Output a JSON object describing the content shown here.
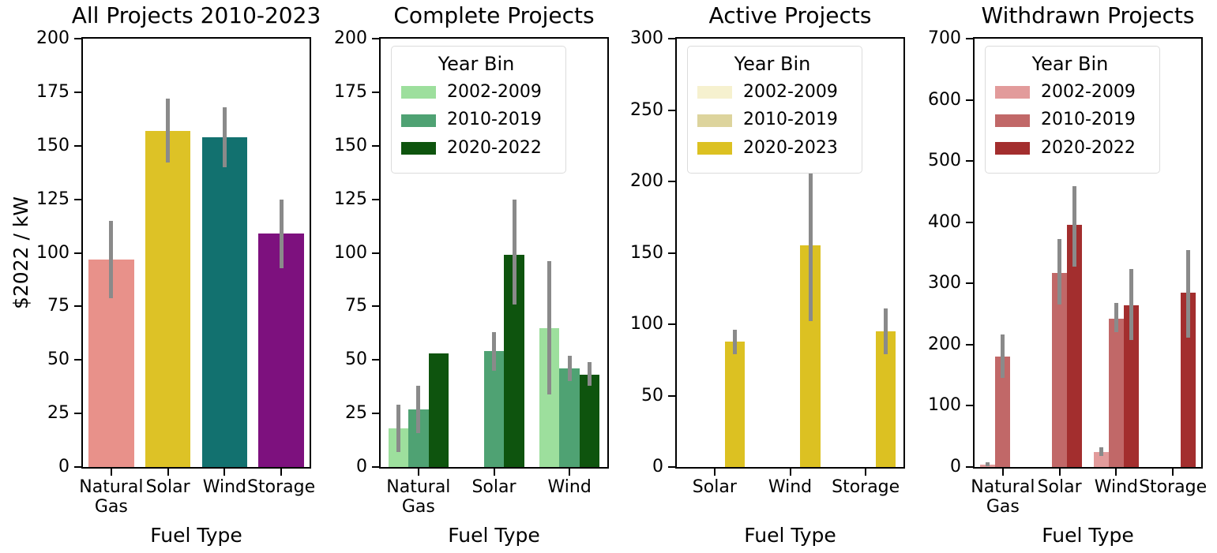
{
  "figure": {
    "background": "#FFFFFF",
    "shared_xlabel": "Fuel Type",
    "shared_ylabel": "$2022 / kW",
    "error_bar_color": "#8A8A8A",
    "spine_color": "#000000"
  },
  "chart_data": [
    {
      "type": "bar",
      "title": "All Projects 2010-2023",
      "xlabel": "Fuel Type",
      "ylabel": "$2022 / kW",
      "ylim": [
        0,
        200
      ],
      "yticks": [
        0,
        25,
        50,
        75,
        100,
        125,
        150,
        175,
        200
      ],
      "grid": false,
      "error_bars": true,
      "legend": null,
      "groups": [
        {
          "label_lines": [
            "Natural",
            "Gas"
          ],
          "bars": [
            {
              "value": 97,
              "err": [
                79,
                115
              ],
              "color": "#E8918A"
            }
          ]
        },
        {
          "label_lines": [
            "Solar"
          ],
          "bars": [
            {
              "value": 157,
              "err": [
                142,
                172
              ],
              "color": "#DDC226"
            }
          ]
        },
        {
          "label_lines": [
            "Wind"
          ],
          "bars": [
            {
              "value": 154,
              "err": [
                140,
                168
              ],
              "color": "#12716F"
            }
          ]
        },
        {
          "label_lines": [
            "Storage"
          ],
          "bars": [
            {
              "value": 109,
              "err": [
                93,
                125
              ],
              "color": "#7D117E"
            }
          ]
        }
      ]
    },
    {
      "type": "bar",
      "title": "Complete Projects",
      "xlabel": "Fuel Type",
      "ylabel": null,
      "ylim": [
        0,
        200
      ],
      "yticks": [
        0,
        25,
        50,
        75,
        100,
        125,
        150,
        175,
        200
      ],
      "grid": false,
      "error_bars": true,
      "legend": {
        "title": "Year Bin",
        "position": "upper-left",
        "entries": [
          {
            "label": "2002-2009",
            "color": "#9DDF9D"
          },
          {
            "label": "2010-2019",
            "color": "#4FA273"
          },
          {
            "label": "2020-2022",
            "color": "#0E540E"
          }
        ]
      },
      "groups": [
        {
          "label_lines": [
            "Natural",
            "Gas"
          ],
          "bars": [
            {
              "bin": "2002-2009",
              "value": 18,
              "err": [
                7,
                29
              ]
            },
            {
              "bin": "2010-2019",
              "value": 27,
              "err": [
                16,
                38
              ]
            },
            {
              "bin": "2020-2022",
              "value": 53,
              "err": null
            }
          ]
        },
        {
          "label_lines": [
            "Solar"
          ],
          "bars": [
            {
              "bin": "2010-2019",
              "value": 54,
              "err": [
                45,
                63
              ]
            },
            {
              "bin": "2020-2022",
              "value": 99,
              "err": [
                76,
                125
              ]
            }
          ]
        },
        {
          "label_lines": [
            "Wind"
          ],
          "bars": [
            {
              "bin": "2002-2009",
              "value": 65,
              "err": [
                34,
                96
              ]
            },
            {
              "bin": "2010-2019",
              "value": 46,
              "err": [
                40,
                52
              ]
            },
            {
              "bin": "2020-2022",
              "value": 43,
              "err": [
                38,
                49
              ]
            }
          ]
        }
      ]
    },
    {
      "type": "bar",
      "title": "Active Projects",
      "xlabel": "Fuel Type",
      "ylabel": null,
      "ylim": [
        0,
        300
      ],
      "yticks": [
        0,
        50,
        100,
        150,
        200,
        250,
        300
      ],
      "grid": false,
      "error_bars": true,
      "legend": {
        "title": "Year Bin",
        "position": "upper-left",
        "entries": [
          {
            "label": "2002-2009",
            "color": "#F6F1CF"
          },
          {
            "label": "2010-2019",
            "color": "#DDD49D"
          },
          {
            "label": "2020-2023",
            "color": "#DCC122"
          }
        ]
      },
      "groups": [
        {
          "label_lines": [
            "Solar"
          ],
          "bars": [
            {
              "bin": "2020-2023",
              "value": 88,
              "err": [
                79,
                96
              ]
            }
          ]
        },
        {
          "label_lines": [
            "Wind"
          ],
          "bars": [
            {
              "bin": "2020-2023",
              "value": 155,
              "err": [
                102,
                206
              ]
            }
          ]
        },
        {
          "label_lines": [
            "Storage"
          ],
          "bars": [
            {
              "bin": "2020-2023",
              "value": 95,
              "err": [
                79,
                111
              ]
            }
          ]
        }
      ]
    },
    {
      "type": "bar",
      "title": "Withdrawn Projects",
      "xlabel": "Fuel Type",
      "ylabel": null,
      "ylim": [
        0,
        700
      ],
      "yticks": [
        0,
        100,
        200,
        300,
        400,
        500,
        600,
        700
      ],
      "grid": false,
      "error_bars": true,
      "legend": {
        "title": "Year Bin",
        "position": "upper-left",
        "entries": [
          {
            "label": "2002-2009",
            "color": "#E29B9B"
          },
          {
            "label": "2010-2019",
            "color": "#C16868"
          },
          {
            "label": "2020-2022",
            "color": "#A32E2E"
          }
        ]
      },
      "groups": [
        {
          "label_lines": [
            "Natural",
            "Gas"
          ],
          "bars": [
            {
              "bin": "2002-2009",
              "value": 4,
              "err": [
                1,
                8
              ]
            },
            {
              "bin": "2010-2019",
              "value": 181,
              "err": [
                146,
                216
              ]
            }
          ]
        },
        {
          "label_lines": [
            "Solar"
          ],
          "bars": [
            {
              "bin": "2010-2019",
              "value": 317,
              "err": [
                265,
                372
              ]
            },
            {
              "bin": "2020-2022",
              "value": 396,
              "err": [
                327,
                459
              ]
            }
          ]
        },
        {
          "label_lines": [
            "Wind"
          ],
          "bars": [
            {
              "bin": "2002-2009",
              "value": 25,
              "err": [
                18,
                32
              ]
            },
            {
              "bin": "2010-2019",
              "value": 243,
              "err": [
                221,
                268
              ]
            },
            {
              "bin": "2020-2022",
              "value": 264,
              "err": [
                207,
                323
              ]
            }
          ]
        },
        {
          "label_lines": [
            "Storage"
          ],
          "bars": [
            {
              "bin": "2020-2022",
              "value": 285,
              "err": [
                212,
                355
              ]
            }
          ]
        }
      ]
    }
  ]
}
